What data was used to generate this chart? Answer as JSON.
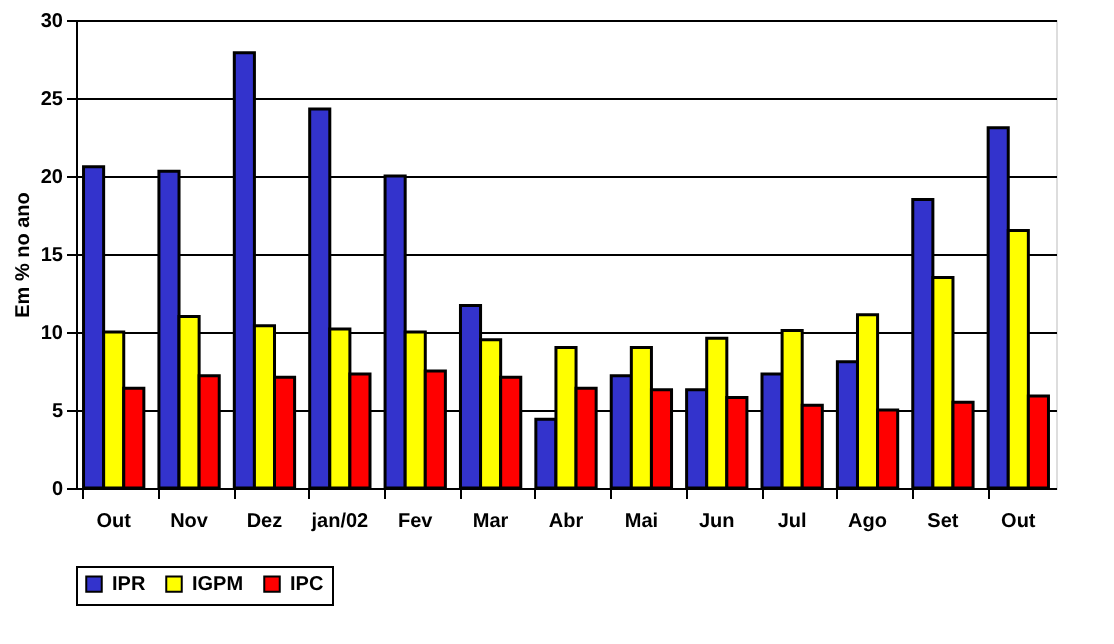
{
  "chart_data": {
    "type": "bar",
    "ylabel": "Em % no ano",
    "categories": [
      "Out",
      "Nov",
      "Dez",
      "jan/02",
      "Fev",
      "Mar",
      "Abr",
      "Mai",
      "Jun",
      "Jul",
      "Ago",
      "Set",
      "Out"
    ],
    "series": [
      {
        "name": "IPR",
        "color": "#3333cc",
        "values": [
          20.6,
          20.3,
          27.9,
          24.3,
          20.0,
          11.7,
          4.4,
          7.2,
          6.3,
          7.3,
          8.1,
          18.5,
          23.1
        ]
      },
      {
        "name": "IGPM",
        "color": "#ffff00",
        "values": [
          10.0,
          11.0,
          10.4,
          10.2,
          10.0,
          9.5,
          9.0,
          9.0,
          9.6,
          10.1,
          11.1,
          13.5,
          16.5
        ]
      },
      {
        "name": "IPC",
        "color": "#ff0000",
        "values": [
          6.4,
          7.2,
          7.1,
          7.3,
          7.5,
          7.1,
          6.4,
          6.3,
          5.8,
          5.3,
          5.0,
          5.5,
          5.9
        ]
      }
    ],
    "ylim": [
      0,
      30
    ],
    "yticks": [
      0,
      5,
      10,
      15,
      20,
      25,
      30
    ],
    "grid": "y",
    "legend": "bottom"
  }
}
